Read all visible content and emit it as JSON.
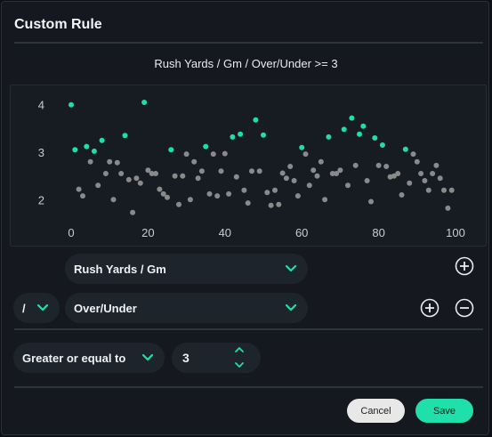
{
  "dialog": {
    "title": "Custom Rule"
  },
  "rule_text": "Rush Yards / Gm / Over/Under >= 3",
  "chart_data": {
    "type": "scatter",
    "xlim": [
      0,
      100
    ],
    "ylim": [
      1.5,
      4.2
    ],
    "x_ticks": [
      "0",
      "20",
      "40",
      "60",
      "80",
      "100"
    ],
    "y_ticks": [
      "2",
      "3",
      "4"
    ],
    "threshold": 3,
    "colors": {
      "above": "#1de0a6",
      "below": "#8a8a8a"
    },
    "points": [
      [
        0,
        4.0
      ],
      [
        1,
        3.05
      ],
      [
        2,
        2.22
      ],
      [
        3,
        2.08
      ],
      [
        4,
        3.12
      ],
      [
        5,
        2.8
      ],
      [
        6,
        3.02
      ],
      [
        7,
        2.3
      ],
      [
        8,
        3.25
      ],
      [
        9,
        2.55
      ],
      [
        10,
        2.8
      ],
      [
        11,
        2.0
      ],
      [
        12,
        2.78
      ],
      [
        13,
        2.55
      ],
      [
        14,
        3.35
      ],
      [
        15,
        2.42
      ],
      [
        16,
        1.73
      ],
      [
        17,
        2.45
      ],
      [
        18,
        2.35
      ],
      [
        19,
        4.05
      ],
      [
        20,
        2.62
      ],
      [
        21,
        2.55
      ],
      [
        22,
        2.55
      ],
      [
        23,
        2.22
      ],
      [
        24,
        2.12
      ],
      [
        25,
        2.05
      ],
      [
        26,
        3.05
      ],
      [
        27,
        2.5
      ],
      [
        28,
        1.9
      ],
      [
        29,
        2.5
      ],
      [
        30,
        2.96
      ],
      [
        31,
        2.0
      ],
      [
        32,
        2.8
      ],
      [
        33,
        2.45
      ],
      [
        34,
        2.6
      ],
      [
        35,
        3.12
      ],
      [
        36,
        2.12
      ],
      [
        37,
        2.96
      ],
      [
        38,
        2.08
      ],
      [
        39,
        2.6
      ],
      [
        40,
        2.97
      ],
      [
        41,
        2.12
      ],
      [
        42,
        3.32
      ],
      [
        43,
        2.48
      ],
      [
        44,
        3.38
      ],
      [
        45,
        2.2
      ],
      [
        46,
        1.93
      ],
      [
        47,
        2.6
      ],
      [
        48,
        3.68
      ],
      [
        49,
        2.6
      ],
      [
        50,
        3.36
      ],
      [
        51,
        2.15
      ],
      [
        52,
        1.88
      ],
      [
        53,
        2.2
      ],
      [
        54,
        1.9
      ],
      [
        55,
        2.56
      ],
      [
        56,
        2.45
      ],
      [
        57,
        2.7
      ],
      [
        58,
        2.4
      ],
      [
        59,
        2.08
      ],
      [
        60,
        3.1
      ],
      [
        61,
        2.96
      ],
      [
        62,
        2.3
      ],
      [
        63,
        2.62
      ],
      [
        64,
        2.5
      ],
      [
        65,
        2.8
      ],
      [
        66,
        2.0
      ],
      [
        67,
        3.32
      ],
      [
        68,
        2.55
      ],
      [
        69,
        2.55
      ],
      [
        70,
        2.62
      ],
      [
        71,
        3.48
      ],
      [
        72,
        2.3
      ],
      [
        73,
        3.72
      ],
      [
        74,
        2.72
      ],
      [
        75,
        3.38
      ],
      [
        76,
        3.55
      ],
      [
        77,
        2.4
      ],
      [
        78,
        1.96
      ],
      [
        79,
        3.3
      ],
      [
        80,
        2.72
      ],
      [
        81,
        3.15
      ],
      [
        82,
        2.7
      ],
      [
        83,
        2.48
      ],
      [
        84,
        2.5
      ],
      [
        85,
        2.55
      ],
      [
        86,
        2.1
      ],
      [
        87,
        3.06
      ],
      [
        88,
        2.35
      ],
      [
        89,
        2.96
      ],
      [
        90,
        2.8
      ],
      [
        91,
        2.55
      ],
      [
        92,
        2.4
      ],
      [
        93,
        2.2
      ],
      [
        94,
        2.55
      ],
      [
        95,
        2.72
      ],
      [
        96,
        2.45
      ],
      [
        97,
        2.2
      ],
      [
        98,
        1.82
      ],
      [
        99,
        2.2
      ]
    ]
  },
  "row1": {
    "field": "Rush Yards / Gm"
  },
  "row2": {
    "operator": "/",
    "field": "Over/Under"
  },
  "condition": {
    "comparator": "Greater or equal to",
    "value": "3"
  },
  "footer": {
    "cancel_label": "Cancel",
    "save_label": "Save"
  },
  "theme": {
    "accent": "#1fe0aa"
  },
  "icons": {
    "add": "plus-circle-icon",
    "remove": "minus-circle-icon",
    "dropdown": "chevron-down-icon"
  }
}
